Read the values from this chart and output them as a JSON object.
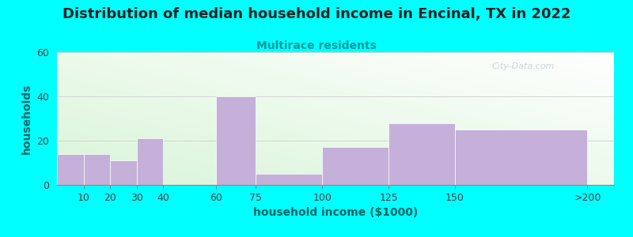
{
  "title": "Distribution of median household income in Encinal, TX in 2022",
  "subtitle": "Multirace residents",
  "xlabel": "household income ($1000)",
  "ylabel": "households",
  "background_color": "#00FFFF",
  "bar_color": "#C4B0D8",
  "bar_edge_color": "#C4B0D8",
  "title_fontsize": 13,
  "subtitle_fontsize": 10,
  "subtitle_color": "#009999",
  "axis_label_fontsize": 10,
  "tick_fontsize": 9,
  "watermark": "City-Data.com",
  "ylim": [
    0,
    60
  ],
  "yticks": [
    0,
    20,
    40,
    60
  ],
  "bar_lefts": [
    0,
    10,
    20,
    30,
    40,
    60,
    75,
    100,
    125,
    150
  ],
  "bar_widths": [
    10,
    10,
    10,
    10,
    20,
    15,
    25,
    25,
    25,
    50
  ],
  "bar_heights": [
    14,
    14,
    11,
    21,
    0,
    40,
    5,
    17,
    28,
    25
  ],
  "xtick_positions": [
    10,
    20,
    30,
    40,
    60,
    75,
    100,
    125,
    150,
    200
  ],
  "xtick_labels": [
    "10",
    "20",
    "30",
    "40",
    "60",
    "75",
    "100",
    "125",
    "150",
    ">200"
  ],
  "xlim": [
    0,
    210
  ]
}
